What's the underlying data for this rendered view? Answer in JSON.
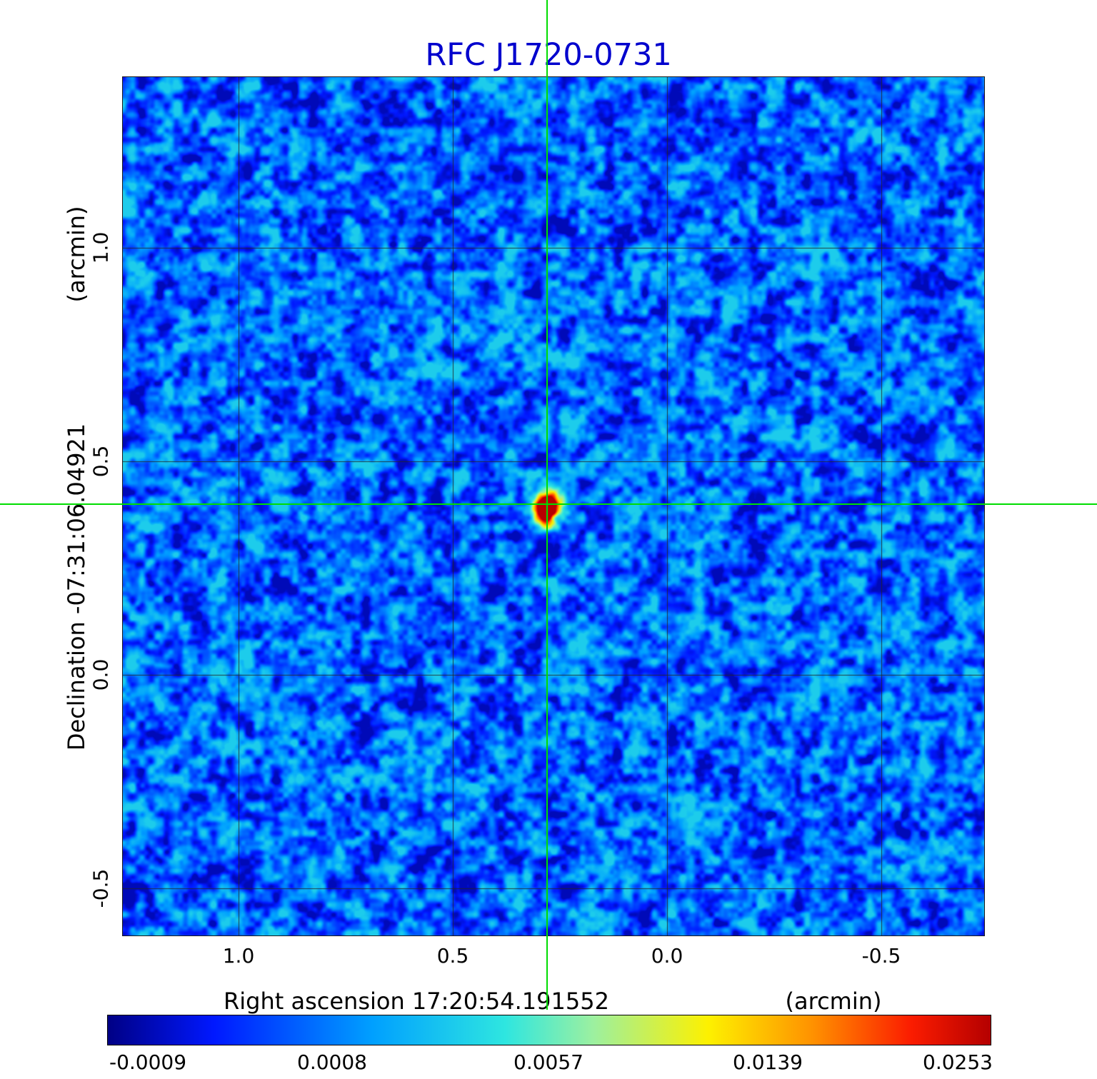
{
  "title": "RFC J1720-0731",
  "title_color": "#0000cd",
  "axes": {
    "y_title": "Declination -07:31:06.04921",
    "y_unit": "(arcmin)",
    "x_title": "Right ascension 17:20:54.191552",
    "x_unit": "(arcmin)",
    "y_tick_labels": [
      "1.0",
      "0.5",
      "0.0",
      "-0.5"
    ],
    "x_tick_labels": [
      "1.0",
      "0.5",
      "0.0",
      "-0.5"
    ]
  },
  "colorbar": {
    "tick_labels": [
      "-0.0009",
      "0.0008",
      "0.0057",
      "0.0139",
      "0.0253"
    ],
    "stops": [
      {
        "t": 0.0,
        "color": "#000085"
      },
      {
        "t": 0.12,
        "color": "#0018ff"
      },
      {
        "t": 0.3,
        "color": "#00a0ff"
      },
      {
        "t": 0.45,
        "color": "#2ee6e0"
      },
      {
        "t": 0.55,
        "color": "#9cf0a0"
      },
      {
        "t": 0.68,
        "color": "#fdf100"
      },
      {
        "t": 0.8,
        "color": "#ff9000"
      },
      {
        "t": 0.91,
        "color": "#fb1c00"
      },
      {
        "t": 1.0,
        "color": "#b40000"
      }
    ]
  },
  "crosshair_color": "#00dd00",
  "grid_color": "#262626",
  "chart_data": {
    "type": "heatmap",
    "title": "RFC J1720-0731",
    "xlabel": "Right ascension 17:20:54.191552 (arcmin)",
    "ylabel": "Declination -07:31:06.04921 (arcmin)",
    "x_ticks": [
      1.0,
      0.5,
      0.0,
      -0.5
    ],
    "y_ticks": [
      1.0,
      0.5,
      0.0,
      -0.5
    ],
    "x_range_left_to_right": [
      1.27,
      -0.74
    ],
    "y_range_bottom_to_top": [
      -0.61,
      1.4
    ],
    "value_min": -0.0009,
    "value_max": 0.0253,
    "colorbar_tick_values": [
      -0.0009,
      0.0008,
      0.0057,
      0.0139,
      0.0253
    ],
    "intensity_scale": "nonlinear (colorbar ticks evenly spaced, approximately quadratic in value)",
    "colormap": "rainbow: dark blue -> blue -> cyan -> pale green -> yellow -> orange -> dark red",
    "grid": true,
    "source": {
      "x_arcmin": 0.28,
      "y_arcmin": 0.4,
      "peak_value": 0.0253
    },
    "background": "blue interferometric noise near zero flux with green crosshair marking the source"
  }
}
